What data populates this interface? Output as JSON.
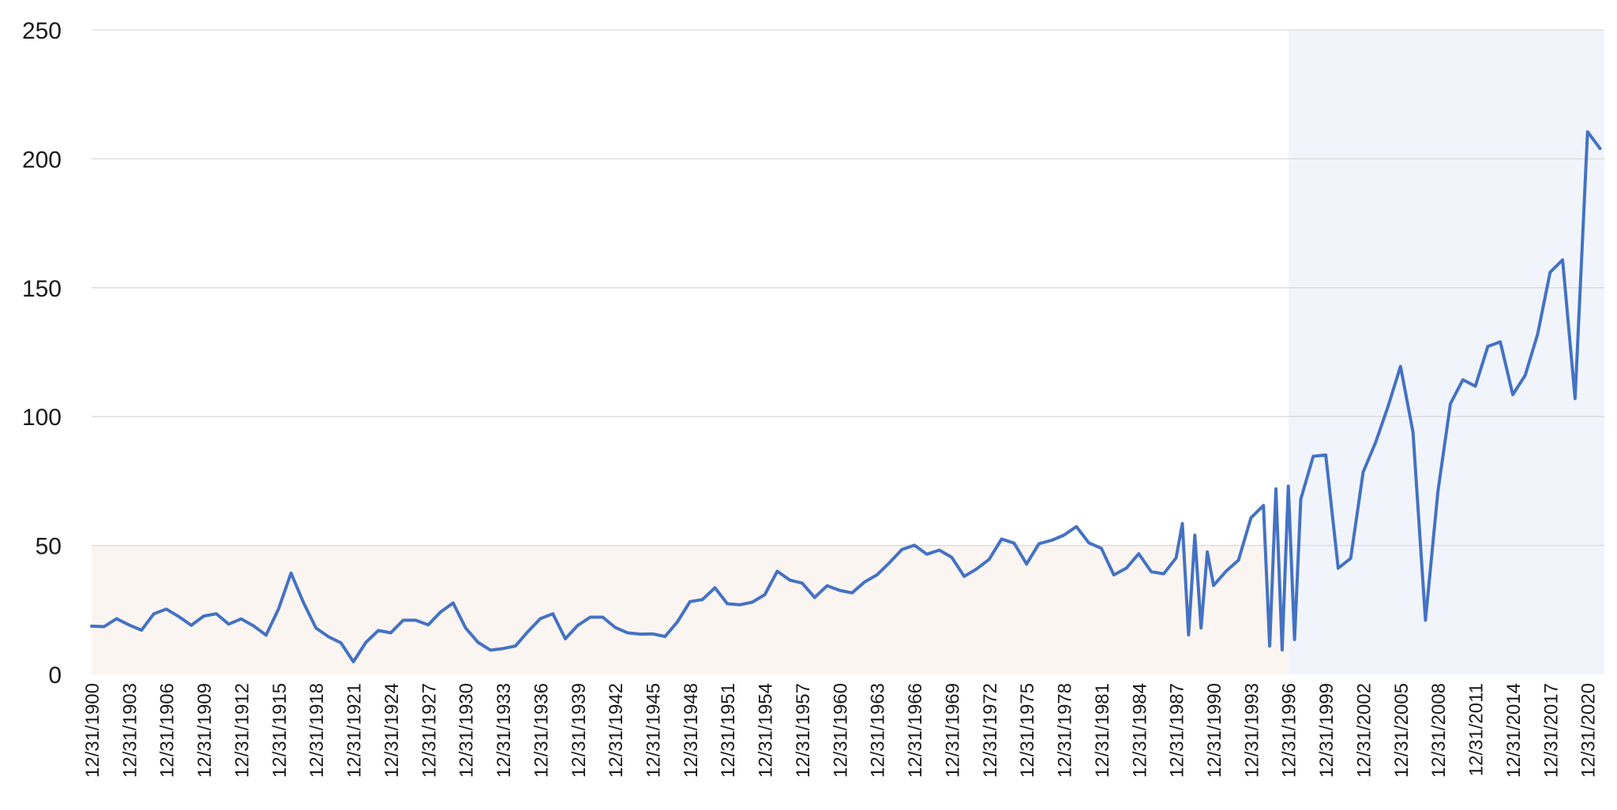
{
  "chart_data": {
    "type": "line",
    "title": "",
    "xlabel": "",
    "ylabel": "",
    "ylim": [
      0,
      250
    ],
    "yticks": [
      0,
      50,
      100,
      150,
      200,
      250
    ],
    "grid": true,
    "legend": "none",
    "colors": {
      "series": "#4472c4",
      "low_band": "#fbf5f1",
      "recent_band": "#f1f5fb",
      "grid": "#d9d9d9"
    },
    "shaded_regions": [
      {
        "name": "low-region",
        "x_from": "12/31/1900",
        "x_to": "12/31/1996",
        "y_from": 0,
        "y_to": 50
      },
      {
        "name": "recent-region",
        "x_from": "12/31/1996",
        "x_to": "12/31/2021",
        "y_from": 0,
        "y_to": 250
      }
    ],
    "x_tick_labels": [
      "12/31/1900",
      "12/31/1903",
      "12/31/1906",
      "12/31/1909",
      "12/31/1912",
      "12/31/1915",
      "12/31/1918",
      "12/31/1921",
      "12/31/1924",
      "12/31/1927",
      "12/31/1930",
      "12/31/1933",
      "12/31/1936",
      "12/31/1939",
      "12/31/1942",
      "12/31/1945",
      "12/31/1948",
      "12/31/1951",
      "12/31/1954",
      "12/31/1957",
      "12/31/1960",
      "12/31/1963",
      "12/31/1966",
      "12/31/1969",
      "12/31/1972",
      "12/31/1975",
      "12/31/1978",
      "12/31/1981",
      "12/31/1984",
      "12/31/1987",
      "12/31/1990",
      "12/31/1993",
      "12/31/1996",
      "12/31/1999",
      "12/31/2002",
      "12/31/2005",
      "12/31/2008",
      "12/31/2011",
      "12/31/2014",
      "12/31/2017",
      "12/31/2020"
    ],
    "series": [
      {
        "points": [
          [
            "12/31/1900",
            18.7
          ],
          [
            "12/31/1901",
            18.5
          ],
          [
            "12/31/1902",
            21.6
          ],
          [
            "12/31/1903",
            19.2
          ],
          [
            "12/31/1904",
            17.1
          ],
          [
            "12/31/1905",
            23.5
          ],
          [
            "12/31/1906",
            25.3
          ],
          [
            "12/31/1907",
            22.4
          ],
          [
            "12/31/1908",
            19
          ],
          [
            "12/31/1909",
            22.6
          ],
          [
            "12/31/1910",
            23.5
          ],
          [
            "12/31/1911",
            19.5
          ],
          [
            "12/31/1912",
            21.5
          ],
          [
            "12/31/1913",
            18.8
          ],
          [
            "12/31/1914",
            15.2
          ],
          [
            "12/31/1915",
            25.4
          ],
          [
            "12/31/1916",
            39.3
          ],
          [
            "12/31/1917",
            27.8
          ],
          [
            "12/31/1918",
            18
          ],
          [
            "12/31/1919",
            14.6
          ],
          [
            "12/31/1920",
            12.2
          ],
          [
            "12/31/1921",
            4.9
          ],
          [
            "12/31/1922",
            12.4
          ],
          [
            "12/31/1923",
            17
          ],
          [
            "12/31/1924",
            16.1
          ],
          [
            "12/31/1925",
            21
          ],
          [
            "12/31/1926",
            21
          ],
          [
            "12/31/1927",
            19.2
          ],
          [
            "12/31/1928",
            24.2
          ],
          [
            "12/31/1929",
            27.7
          ],
          [
            "12/31/1930",
            18
          ],
          [
            "12/31/1931",
            12.4
          ],
          [
            "12/31/1932",
            9.4
          ],
          [
            "12/31/1933",
            10
          ],
          [
            "12/31/1934",
            11
          ],
          [
            "12/31/1935",
            16.6
          ],
          [
            "12/31/1936",
            21.6
          ],
          [
            "12/31/1937",
            23.5
          ],
          [
            "12/31/1938",
            13.8
          ],
          [
            "12/31/1939",
            19
          ],
          [
            "12/31/1940",
            22.2
          ],
          [
            "12/31/1941",
            22.2
          ],
          [
            "12/31/1942",
            18.2
          ],
          [
            "12/31/1943",
            16.1
          ],
          [
            "12/31/1944",
            15.6
          ],
          [
            "12/31/1945",
            15.7
          ],
          [
            "12/31/1946",
            14.7
          ],
          [
            "12/31/1947",
            20.4
          ],
          [
            "12/31/1948",
            28.2
          ],
          [
            "12/31/1949",
            29
          ],
          [
            "12/31/1950",
            33.6
          ],
          [
            "12/31/1951",
            27.4
          ],
          [
            "12/31/1952",
            27
          ],
          [
            "12/31/1953",
            28
          ],
          [
            "12/31/1954",
            30.9
          ],
          [
            "12/31/1955",
            40
          ],
          [
            "12/31/1956",
            36.6
          ],
          [
            "12/31/1957",
            35.4
          ],
          [
            "12/31/1958",
            29.8
          ],
          [
            "12/31/1959",
            34.4
          ],
          [
            "12/31/1960",
            32.6
          ],
          [
            "12/31/1961",
            31.6
          ],
          [
            "12/31/1962",
            35.8
          ],
          [
            "12/31/1963",
            38.6
          ],
          [
            "12/31/1964",
            43.3
          ],
          [
            "12/31/1965",
            48.4
          ],
          [
            "12/31/1966",
            50.1
          ],
          [
            "12/31/1967",
            46.6
          ],
          [
            "12/31/1968",
            48.2
          ],
          [
            "12/31/1969",
            45.4
          ],
          [
            "12/31/1970",
            38
          ],
          [
            "12/31/1971",
            40.9
          ],
          [
            "12/31/1972",
            44.6
          ],
          [
            "12/31/1973",
            52.5
          ],
          [
            "12/31/1974",
            50.9
          ],
          [
            "12/31/1975",
            42.8
          ],
          [
            "12/31/1976",
            50.7
          ],
          [
            "12/31/1977",
            52
          ],
          [
            "12/31/1978",
            54
          ],
          [
            "12/31/1979",
            57.3
          ],
          [
            "12/31/1980",
            51
          ],
          [
            "12/31/1981",
            48.9
          ],
          [
            "12/31/1982",
            38.6
          ],
          [
            "12/31/1983",
            41.2
          ],
          [
            "12/31/1984",
            46.8
          ],
          [
            "12/31/1985",
            39.8
          ],
          [
            "12/31/1986",
            39
          ],
          [
            "12/31/1987",
            45.2
          ],
          [
            "12/31/1987",
            58.5
          ],
          [
            "12/31/1988",
            15.3
          ],
          [
            "12/31/1988",
            54
          ],
          [
            "12/31/1989",
            18
          ],
          [
            "12/31/1989",
            47.5
          ],
          [
            "12/31/1990",
            34.5
          ],
          [
            "12/31/1991",
            40
          ],
          [
            "12/31/1992",
            44.3
          ],
          [
            "12/31/1993",
            60.7
          ],
          [
            "12/31/1994",
            65.5
          ],
          [
            "12/31/1994",
            11
          ],
          [
            "12/31/1995",
            72
          ],
          [
            "12/31/1995",
            9.5
          ],
          [
            "12/31/1996",
            73
          ],
          [
            "12/31/1996",
            13.5
          ],
          [
            "12/31/1997",
            68
          ],
          [
            "12/31/1998",
            84.6
          ],
          [
            "12/31/1999",
            85.1
          ],
          [
            "12/31/2000",
            41.2
          ],
          [
            "12/31/2001",
            45
          ],
          [
            "12/31/2002",
            78.5
          ],
          [
            "12/31/2003",
            90
          ],
          [
            "12/31/2004",
            104
          ],
          [
            "12/31/2005",
            119.5
          ],
          [
            "12/31/2006",
            94
          ],
          [
            "12/31/2007",
            21
          ],
          [
            "12/31/2008",
            71
          ],
          [
            "12/31/2009",
            105
          ],
          [
            "12/31/2010",
            114.3
          ],
          [
            "12/31/2011",
            111.8
          ],
          [
            "12/31/2012",
            127.2
          ],
          [
            "12/31/2013",
            129
          ],
          [
            "12/31/2014",
            108.5
          ],
          [
            "12/31/2015",
            116
          ],
          [
            "12/31/2016",
            132
          ],
          [
            "12/31/2017",
            156
          ],
          [
            "12/31/2018",
            160.8
          ],
          [
            "12/31/2019",
            107
          ],
          [
            "12/31/2020",
            210.5
          ],
          [
            "12/31/2021",
            204
          ]
        ]
      }
    ]
  }
}
